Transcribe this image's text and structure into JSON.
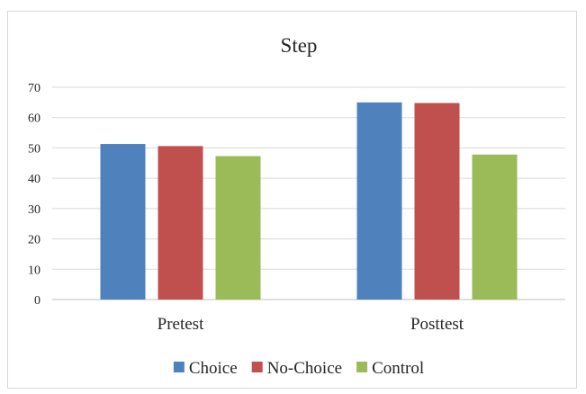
{
  "chart_data": {
    "type": "bar",
    "title": "Step",
    "xlabel": "",
    "ylabel": "",
    "categories": [
      "Pretest",
      "Posttest"
    ],
    "series": [
      {
        "name": "Choice",
        "values": [
          51.3,
          65.0
        ],
        "color": "#4f81bd"
      },
      {
        "name": "No-Choice",
        "values": [
          50.6,
          64.8
        ],
        "color": "#c0504d"
      },
      {
        "name": "Control",
        "values": [
          47.3,
          47.8
        ],
        "color": "#9bbb59"
      }
    ],
    "ylim": [
      0,
      70
    ],
    "yticks": [
      "0",
      "10",
      "20",
      "30",
      "40",
      "50",
      "60",
      "70"
    ],
    "grid": true,
    "legend_position": "bottom"
  }
}
